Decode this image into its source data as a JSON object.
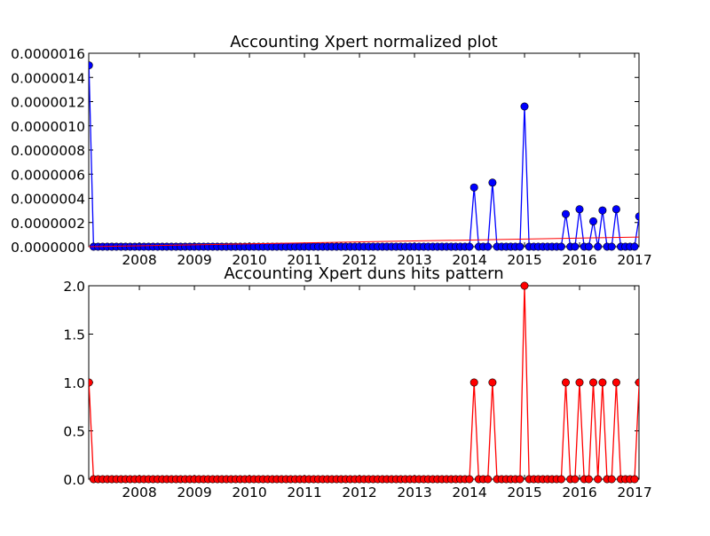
{
  "chart_data": [
    {
      "type": "line",
      "title": "Accounting Xpert normalized plot",
      "xlabel": "",
      "ylabel": "",
      "xlim": [
        2007.08,
        2017.08
      ],
      "ylim": [
        0,
        1.6e-06
      ],
      "grid": false,
      "x_ticks": [
        "2008",
        "2009",
        "2010",
        "2011",
        "2012",
        "2013",
        "2014",
        "2015",
        "2016",
        "2017"
      ],
      "y_ticks": [
        "0.0000000",
        "0.0000002",
        "0.0000004",
        "0.0000006",
        "0.0000008",
        "0.0000010",
        "0.0000012",
        "0.0000014",
        "0.0000016"
      ],
      "colors": {
        "series": "#0000ff",
        "trend": "#ff0000"
      },
      "series": [
        {
          "values_nonzero": [
            [
              2007.08,
              1.5e-06
            ],
            [
              2014.08,
              4.9e-07
            ],
            [
              2014.42,
              5.3e-07
            ],
            [
              2015.0,
              1.16e-06
            ],
            [
              2015.75,
              2.7e-07
            ],
            [
              2016.0,
              3.1e-07
            ],
            [
              2016.25,
              2.1e-07
            ],
            [
              2016.42,
              3e-07
            ],
            [
              2016.67,
              3.1e-07
            ],
            [
              2017.08,
              2.5e-07
            ]
          ],
          "sampling": "monthly, zero elsewhere"
        },
        {
          "kind": "trend",
          "points": [
            [
              2007.08,
              0.0
            ],
            [
              2017.08,
              8e-08
            ]
          ]
        }
      ]
    },
    {
      "type": "line",
      "title": "Accounting Xpert duns hits pattern",
      "xlabel": "",
      "ylabel": "",
      "xlim": [
        2007.08,
        2017.08
      ],
      "ylim": [
        0,
        2.0
      ],
      "grid": false,
      "x_ticks": [
        "2008",
        "2009",
        "2010",
        "2011",
        "2012",
        "2013",
        "2014",
        "2015",
        "2016",
        "2017"
      ],
      "y_ticks": [
        "0.0",
        "0.5",
        "1.0",
        "1.5",
        "2.0"
      ],
      "colors": {
        "series": "#ff0000"
      },
      "series": [
        {
          "values_nonzero": [
            [
              2007.08,
              1
            ],
            [
              2014.08,
              1
            ],
            [
              2014.42,
              1
            ],
            [
              2015.0,
              2
            ],
            [
              2015.75,
              1
            ],
            [
              2016.0,
              1
            ],
            [
              2016.25,
              1
            ],
            [
              2016.42,
              1
            ],
            [
              2016.67,
              1
            ],
            [
              2017.08,
              1
            ]
          ],
          "sampling": "monthly, zero elsewhere"
        }
      ]
    }
  ]
}
